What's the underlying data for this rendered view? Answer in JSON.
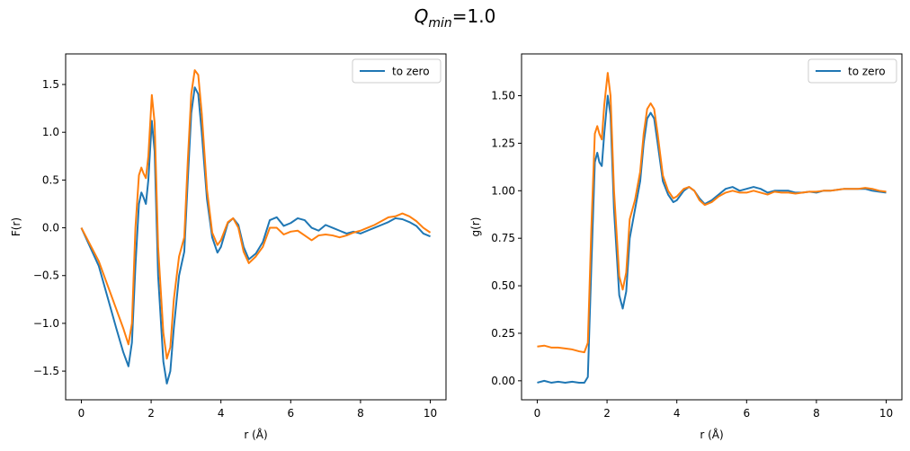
{
  "figure": {
    "suptitle_var": "Q",
    "suptitle_sub": "min",
    "suptitle_rest": "=1.0"
  },
  "chart_data": [
    {
      "type": "line",
      "xlabel": "r (Å)",
      "ylabel": "F(r)",
      "xlim": [
        -0.45,
        10.45
      ],
      "ylim": [
        -1.8,
        1.82
      ],
      "xticks": [
        0,
        2,
        4,
        6,
        8,
        10
      ],
      "yticks": [
        -1.5,
        -1.0,
        -0.5,
        0.0,
        0.5,
        1.0,
        1.5
      ],
      "ytick_labels": [
        "−1.5",
        "−1.0",
        "−0.5",
        "0.0",
        "0.5",
        "1.0",
        "1.5"
      ],
      "legend": {
        "position": "top-right",
        "entries": [
          "to zero"
        ]
      },
      "grid": false,
      "series": [
        {
          "name": "to zero",
          "color": "#1f77b4",
          "points": [
            [
              0,
              0
            ],
            [
              0.5,
              -0.4
            ],
            [
              1,
              -1.05
            ],
            [
              1.2,
              -1.3
            ],
            [
              1.35,
              -1.45
            ],
            [
              1.45,
              -1.2
            ],
            [
              1.55,
              -0.4
            ],
            [
              1.65,
              0.25
            ],
            [
              1.72,
              0.37
            ],
            [
              1.78,
              0.32
            ],
            [
              1.85,
              0.25
            ],
            [
              1.92,
              0.5
            ],
            [
              2.02,
              1.12
            ],
            [
              2.1,
              0.8
            ],
            [
              2.2,
              -0.5
            ],
            [
              2.35,
              -1.4
            ],
            [
              2.45,
              -1.63
            ],
            [
              2.55,
              -1.5
            ],
            [
              2.65,
              -1.05
            ],
            [
              2.8,
              -0.5
            ],
            [
              2.95,
              -0.25
            ],
            [
              3.05,
              0.5
            ],
            [
              3.15,
              1.2
            ],
            [
              3.25,
              1.47
            ],
            [
              3.35,
              1.4
            ],
            [
              3.45,
              1.0
            ],
            [
              3.6,
              0.3
            ],
            [
              3.75,
              -0.1
            ],
            [
              3.9,
              -0.26
            ],
            [
              4.0,
              -0.2
            ],
            [
              4.2,
              0.05
            ],
            [
              4.35,
              0.1
            ],
            [
              4.5,
              0.03
            ],
            [
              4.65,
              -0.2
            ],
            [
              4.8,
              -0.33
            ],
            [
              5.0,
              -0.27
            ],
            [
              5.2,
              -0.15
            ],
            [
              5.4,
              0.08
            ],
            [
              5.6,
              0.11
            ],
            [
              5.8,
              0.02
            ],
            [
              6.0,
              0.05
            ],
            [
              6.2,
              0.1
            ],
            [
              6.4,
              0.08
            ],
            [
              6.6,
              0.0
            ],
            [
              6.8,
              -0.03
            ],
            [
              7.0,
              0.03
            ],
            [
              7.2,
              0.0
            ],
            [
              7.4,
              -0.03
            ],
            [
              7.6,
              -0.06
            ],
            [
              7.8,
              -0.04
            ],
            [
              8.0,
              -0.06
            ],
            [
              8.2,
              -0.03
            ],
            [
              8.4,
              0.0
            ],
            [
              8.6,
              0.03
            ],
            [
              8.8,
              0.06
            ],
            [
              9.0,
              0.1
            ],
            [
              9.2,
              0.09
            ],
            [
              9.4,
              0.06
            ],
            [
              9.6,
              0.02
            ],
            [
              9.8,
              -0.06
            ],
            [
              10.0,
              -0.09
            ]
          ]
        },
        {
          "name": "",
          "color": "#ff7f0e",
          "points": [
            [
              0,
              0
            ],
            [
              0.5,
              -0.35
            ],
            [
              1,
              -0.85
            ],
            [
              1.2,
              -1.05
            ],
            [
              1.35,
              -1.22
            ],
            [
              1.45,
              -1.0
            ],
            [
              1.55,
              0.0
            ],
            [
              1.65,
              0.55
            ],
            [
              1.72,
              0.63
            ],
            [
              1.78,
              0.57
            ],
            [
              1.85,
              0.52
            ],
            [
              1.92,
              0.75
            ],
            [
              2.02,
              1.39
            ],
            [
              2.1,
              1.1
            ],
            [
              2.2,
              -0.2
            ],
            [
              2.35,
              -1.1
            ],
            [
              2.45,
              -1.37
            ],
            [
              2.55,
              -1.25
            ],
            [
              2.65,
              -0.75
            ],
            [
              2.8,
              -0.3
            ],
            [
              2.95,
              -0.1
            ],
            [
              3.05,
              0.7
            ],
            [
              3.15,
              1.4
            ],
            [
              3.25,
              1.65
            ],
            [
              3.35,
              1.6
            ],
            [
              3.45,
              1.2
            ],
            [
              3.6,
              0.4
            ],
            [
              3.75,
              -0.05
            ],
            [
              3.9,
              -0.18
            ],
            [
              4.0,
              -0.13
            ],
            [
              4.2,
              0.06
            ],
            [
              4.35,
              0.1
            ],
            [
              4.5,
              0.0
            ],
            [
              4.65,
              -0.25
            ],
            [
              4.8,
              -0.37
            ],
            [
              5.0,
              -0.3
            ],
            [
              5.2,
              -0.2
            ],
            [
              5.4,
              0.0
            ],
            [
              5.6,
              0.0
            ],
            [
              5.8,
              -0.07
            ],
            [
              6.0,
              -0.04
            ],
            [
              6.2,
              -0.03
            ],
            [
              6.4,
              -0.08
            ],
            [
              6.6,
              -0.13
            ],
            [
              6.8,
              -0.08
            ],
            [
              7.0,
              -0.07
            ],
            [
              7.2,
              -0.08
            ],
            [
              7.4,
              -0.1
            ],
            [
              7.6,
              -0.08
            ],
            [
              7.8,
              -0.05
            ],
            [
              8.0,
              -0.03
            ],
            [
              8.2,
              0.0
            ],
            [
              8.4,
              0.03
            ],
            [
              8.6,
              0.07
            ],
            [
              8.8,
              0.11
            ],
            [
              9.0,
              0.12
            ],
            [
              9.2,
              0.15
            ],
            [
              9.4,
              0.12
            ],
            [
              9.6,
              0.07
            ],
            [
              9.8,
              0.0
            ],
            [
              10.0,
              -0.05
            ]
          ]
        }
      ]
    },
    {
      "type": "line",
      "xlabel": "r (Å)",
      "ylabel": "g(r)",
      "xlim": [
        -0.45,
        10.45
      ],
      "ylim": [
        -0.1,
        1.72
      ],
      "xticks": [
        0,
        2,
        4,
        6,
        8,
        10
      ],
      "yticks": [
        0.0,
        0.25,
        0.5,
        0.75,
        1.0,
        1.25,
        1.5
      ],
      "ytick_labels": [
        "0.00",
        "0.25",
        "0.50",
        "0.75",
        "1.00",
        "1.25",
        "1.50"
      ],
      "legend": {
        "position": "top-right",
        "entries": [
          "to zero"
        ]
      },
      "grid": false,
      "series": [
        {
          "name": "to zero",
          "color": "#1f77b4",
          "points": [
            [
              0,
              -0.01
            ],
            [
              0.2,
              0.0
            ],
            [
              0.4,
              -0.01
            ],
            [
              0.6,
              -0.005
            ],
            [
              0.8,
              -0.01
            ],
            [
              1.0,
              -0.005
            ],
            [
              1.2,
              -0.01
            ],
            [
              1.35,
              -0.01
            ],
            [
              1.45,
              0.02
            ],
            [
              1.55,
              0.6
            ],
            [
              1.65,
              1.15
            ],
            [
              1.72,
              1.2
            ],
            [
              1.78,
              1.15
            ],
            [
              1.85,
              1.13
            ],
            [
              1.92,
              1.3
            ],
            [
              2.02,
              1.5
            ],
            [
              2.1,
              1.4
            ],
            [
              2.2,
              0.9
            ],
            [
              2.35,
              0.45
            ],
            [
              2.45,
              0.38
            ],
            [
              2.55,
              0.47
            ],
            [
              2.65,
              0.75
            ],
            [
              2.8,
              0.9
            ],
            [
              2.95,
              1.05
            ],
            [
              3.05,
              1.25
            ],
            [
              3.15,
              1.38
            ],
            [
              3.25,
              1.41
            ],
            [
              3.35,
              1.38
            ],
            [
              3.45,
              1.25
            ],
            [
              3.6,
              1.05
            ],
            [
              3.75,
              0.98
            ],
            [
              3.9,
              0.94
            ],
            [
              4.0,
              0.95
            ],
            [
              4.2,
              1.0
            ],
            [
              4.35,
              1.02
            ],
            [
              4.5,
              1.0
            ],
            [
              4.65,
              0.96
            ],
            [
              4.8,
              0.93
            ],
            [
              5.0,
              0.95
            ],
            [
              5.2,
              0.98
            ],
            [
              5.4,
              1.01
            ],
            [
              5.6,
              1.02
            ],
            [
              5.8,
              1.0
            ],
            [
              6.0,
              1.01
            ],
            [
              6.2,
              1.02
            ],
            [
              6.4,
              1.01
            ],
            [
              6.6,
              0.99
            ],
            [
              6.8,
              1.0
            ],
            [
              7.0,
              1.0
            ],
            [
              7.2,
              1.0
            ],
            [
              7.4,
              0.99
            ],
            [
              7.6,
              0.99
            ],
            [
              7.8,
              0.995
            ],
            [
              8.0,
              0.99
            ],
            [
              8.2,
              1.0
            ],
            [
              8.4,
              1.0
            ],
            [
              8.6,
              1.005
            ],
            [
              8.8,
              1.01
            ],
            [
              9.0,
              1.01
            ],
            [
              9.2,
              1.01
            ],
            [
              9.4,
              1.01
            ],
            [
              9.6,
              1.0
            ],
            [
              9.8,
              0.995
            ],
            [
              10.0,
              0.99
            ]
          ]
        },
        {
          "name": "",
          "color": "#ff7f0e",
          "points": [
            [
              0,
              0.18
            ],
            [
              0.2,
              0.185
            ],
            [
              0.4,
              0.175
            ],
            [
              0.6,
              0.175
            ],
            [
              0.8,
              0.17
            ],
            [
              1.0,
              0.165
            ],
            [
              1.2,
              0.155
            ],
            [
              1.35,
              0.15
            ],
            [
              1.45,
              0.2
            ],
            [
              1.55,
              0.8
            ],
            [
              1.65,
              1.3
            ],
            [
              1.72,
              1.34
            ],
            [
              1.78,
              1.3
            ],
            [
              1.85,
              1.27
            ],
            [
              1.92,
              1.45
            ],
            [
              2.02,
              1.62
            ],
            [
              2.1,
              1.5
            ],
            [
              2.2,
              1.0
            ],
            [
              2.35,
              0.55
            ],
            [
              2.45,
              0.48
            ],
            [
              2.55,
              0.57
            ],
            [
              2.65,
              0.85
            ],
            [
              2.8,
              0.95
            ],
            [
              2.95,
              1.1
            ],
            [
              3.05,
              1.3
            ],
            [
              3.15,
              1.43
            ],
            [
              3.25,
              1.46
            ],
            [
              3.35,
              1.43
            ],
            [
              3.45,
              1.3
            ],
            [
              3.6,
              1.08
            ],
            [
              3.75,
              1.0
            ],
            [
              3.9,
              0.96
            ],
            [
              4.0,
              0.97
            ],
            [
              4.2,
              1.01
            ],
            [
              4.35,
              1.02
            ],
            [
              4.5,
              1.0
            ],
            [
              4.65,
              0.95
            ],
            [
              4.8,
              0.925
            ],
            [
              5.0,
              0.94
            ],
            [
              5.2,
              0.97
            ],
            [
              5.4,
              0.99
            ],
            [
              5.6,
              1.0
            ],
            [
              5.8,
              0.99
            ],
            [
              6.0,
              0.99
            ],
            [
              6.2,
              1.0
            ],
            [
              6.4,
              0.99
            ],
            [
              6.6,
              0.98
            ],
            [
              6.8,
              0.995
            ],
            [
              7.0,
              0.99
            ],
            [
              7.2,
              0.99
            ],
            [
              7.4,
              0.985
            ],
            [
              7.6,
              0.99
            ],
            [
              7.8,
              0.995
            ],
            [
              8.0,
              0.995
            ],
            [
              8.2,
              1.0
            ],
            [
              8.4,
              1.0
            ],
            [
              8.6,
              1.005
            ],
            [
              8.8,
              1.01
            ],
            [
              9.0,
              1.01
            ],
            [
              9.2,
              1.01
            ],
            [
              9.4,
              1.015
            ],
            [
              9.6,
              1.01
            ],
            [
              9.8,
              1.0
            ],
            [
              10.0,
              0.995
            ]
          ]
        }
      ]
    }
  ]
}
